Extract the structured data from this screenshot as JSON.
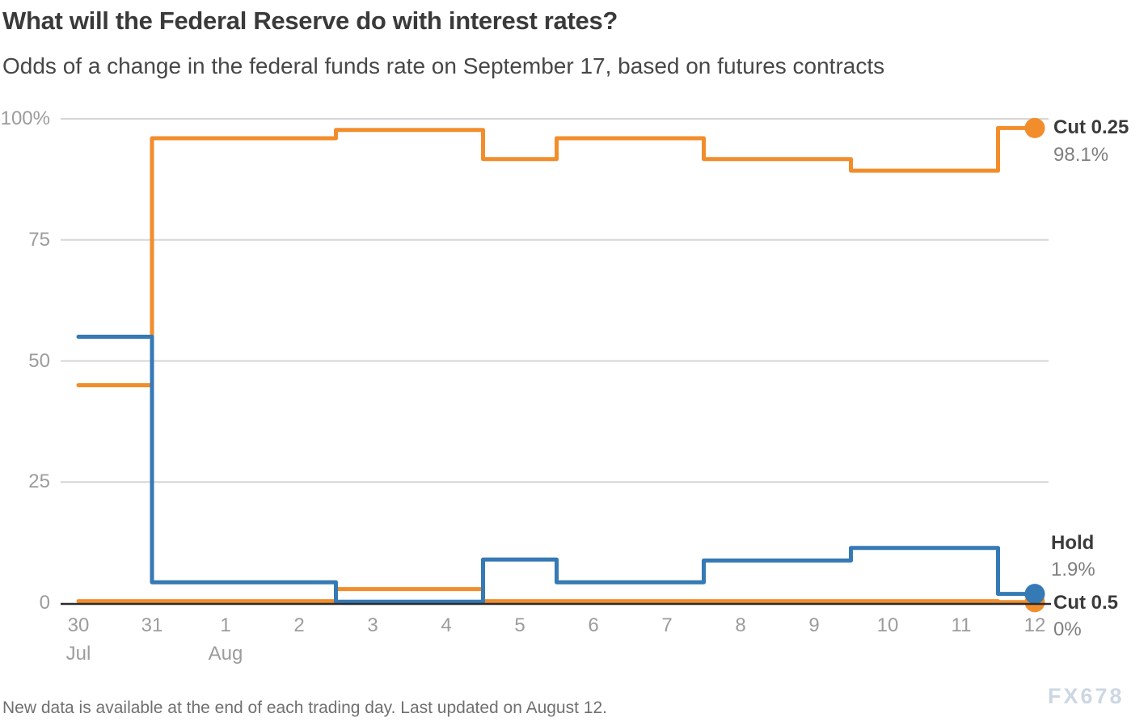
{
  "header": {
    "title": "What will the Federal Reserve do with interest rates?",
    "subtitle": "Odds of a change in the federal funds rate on September 17, based on futures contracts"
  },
  "footer": {
    "note": "New data is available at the end of each trading day. Last updated on August 12.",
    "watermark": "FX678"
  },
  "colors": {
    "orange": "#f28d2c",
    "blue": "#3579b5",
    "grid": "#d6d6d6",
    "axis": "#2b2b2b"
  },
  "chart_data": {
    "type": "line",
    "step": "middle",
    "title": "Odds of a change in the federal funds rate on September 17, based on futures contracts",
    "ylim": [
      0,
      100
    ],
    "grid": true,
    "y_ticks": [
      {
        "label": "100%",
        "value": 100
      },
      {
        "label": "75",
        "value": 75
      },
      {
        "label": "50",
        "value": 50
      },
      {
        "label": "25",
        "value": 25
      },
      {
        "label": "0",
        "value": 0
      }
    ],
    "x_tick_labels": [
      "30",
      "31",
      "1",
      "2",
      "3",
      "4",
      "5",
      "6",
      "7",
      "8",
      "9",
      "10",
      "11",
      "12"
    ],
    "month_labels": [
      {
        "x_index": 0,
        "label": "Jul"
      },
      {
        "x_index": 2,
        "label": "Aug"
      }
    ],
    "series": [
      {
        "name": "Cut 0.25",
        "color_key": "orange",
        "end_label": "Cut 0.25",
        "end_value_label": "98.1%",
        "points": [
          {
            "day": "Jul 30",
            "x_index": 0,
            "value": 45.0
          },
          {
            "day": "Aug 1",
            "x_index": 2,
            "value": 96.0
          },
          {
            "day": "Aug 4",
            "x_index": 5,
            "value": 97.7
          },
          {
            "day": "Aug 5",
            "x_index": 6,
            "value": 91.7
          },
          {
            "day": "Aug 6",
            "x_index": 7,
            "value": 96.0
          },
          {
            "day": "Aug 7",
            "x_index": 8,
            "value": 96.0
          },
          {
            "day": "Aug 8",
            "x_index": 9,
            "value": 91.7
          },
          {
            "day": "Aug 11",
            "x_index": 12,
            "value": 89.3
          },
          {
            "day": "Aug 12",
            "x_index": 13,
            "value": 98.1
          }
        ]
      },
      {
        "name": "Cut 0.5",
        "color_key": "orange",
        "end_label": "Cut 0.5",
        "end_value_label": "0%",
        "points": [
          {
            "day": "Jul 30",
            "x_index": 0,
            "value": 0.4
          },
          {
            "day": "Aug 1",
            "x_index": 2,
            "value": 0.4
          },
          {
            "day": "Aug 4",
            "x_index": 5,
            "value": 2.9
          },
          {
            "day": "Aug 5",
            "x_index": 6,
            "value": 0.4
          },
          {
            "day": "Aug 6",
            "x_index": 7,
            "value": 0.4
          },
          {
            "day": "Aug 7",
            "x_index": 8,
            "value": 0.4
          },
          {
            "day": "Aug 8",
            "x_index": 9,
            "value": 0.4
          },
          {
            "day": "Aug 11",
            "x_index": 12,
            "value": 0.4
          },
          {
            "day": "Aug 12",
            "x_index": 13,
            "value": 0.2
          }
        ]
      },
      {
        "name": "Hold",
        "color_key": "blue",
        "end_label": "Hold",
        "end_value_label": "1.9%",
        "points": [
          {
            "day": "Jul 30",
            "x_index": 0,
            "value": 55.0
          },
          {
            "day": "Aug 1",
            "x_index": 2,
            "value": 4.3
          },
          {
            "day": "Aug 4",
            "x_index": 5,
            "value": 0.3
          },
          {
            "day": "Aug 5",
            "x_index": 6,
            "value": 9.0
          },
          {
            "day": "Aug 6",
            "x_index": 7,
            "value": 4.3
          },
          {
            "day": "Aug 7",
            "x_index": 8,
            "value": 4.3
          },
          {
            "day": "Aug 8",
            "x_index": 9,
            "value": 8.8
          },
          {
            "day": "Aug 11",
            "x_index": 12,
            "value": 11.4
          },
          {
            "day": "Aug 12",
            "x_index": 13,
            "value": 1.9
          }
        ]
      }
    ]
  }
}
